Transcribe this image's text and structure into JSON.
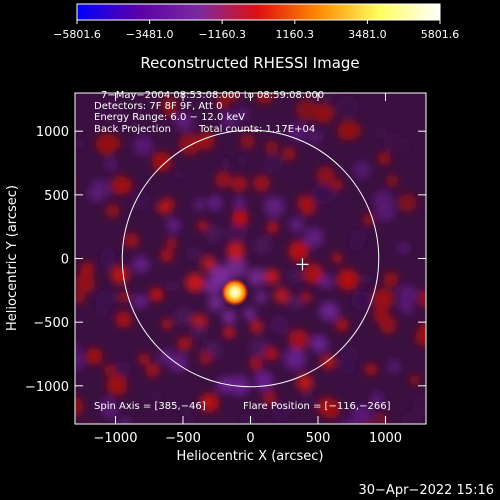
{
  "chart_data": {
    "type": "heatmap",
    "title": "Reconstructed RHESSI Image",
    "xlabel": "Heliocentric X (arcsec)",
    "ylabel": "Heliocentric Y (arcsec)",
    "xlim": [
      -1300,
      1300
    ],
    "ylim": [
      -1300,
      1300
    ],
    "xticks": [
      -1000,
      -500,
      0,
      500,
      1000
    ],
    "xtick_labels": [
      "−1000",
      "−500",
      "0",
      "500",
      "1000"
    ],
    "yticks": [
      -1000,
      -500,
      0,
      500,
      1000
    ],
    "ytick_labels": [
      "−1000",
      "−500",
      "0",
      "500",
      "1000"
    ],
    "colorbar": {
      "min": -5801.6,
      "max": 5801.6,
      "ticks": [
        -5801.6,
        -3481.0,
        -1160.3,
        1160.3,
        3481.0,
        5801.6
      ],
      "tick_labels": [
        "−5801.6",
        "−3481.0",
        "−1160.3",
        "1160.3",
        "3481.0",
        "5801.6"
      ],
      "colors": [
        "#0000ff",
        "#5a00a8",
        "#7a2aa0",
        "#e01010",
        "#ff8c00",
        "#ffff60",
        "#ffffff"
      ]
    },
    "annotations": [
      "7−May−2004 08:53:08.000 to 08:59:08.000",
      "Detectors: 7F 8F 9F, Att 0",
      "Energy Range: 6.0 − 12.0 keV",
      "Back Projection",
      "Total counts: 1.17E+04",
      "Spin Axis = [385,−46]",
      "Flare Position = [−116,−266]"
    ],
    "source": {
      "x": -116,
      "y": -266
    },
    "spin_axis": {
      "x": 385,
      "y": -46
    },
    "solar_limb_radius": 950,
    "timestamp": "30−Apr−2022 15:16"
  }
}
